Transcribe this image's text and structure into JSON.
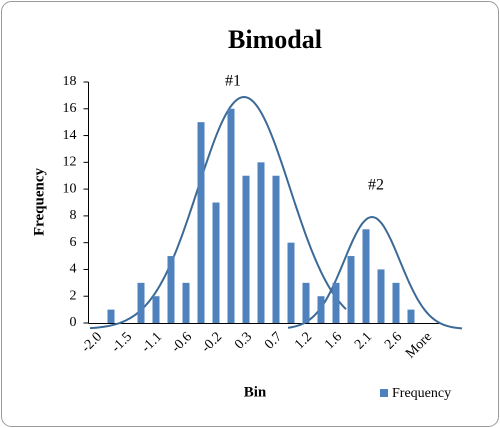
{
  "chart_data": {
    "type": "bar",
    "title": "Bimodal",
    "x_label": "Bin",
    "y_label": "Frequency",
    "categories": [
      "-2.0",
      null,
      "-1.5",
      null,
      "-1.1",
      null,
      "-0.6",
      null,
      "-0.2",
      null,
      "0.3",
      null,
      "0.7",
      null,
      "1.2",
      null,
      "1.6",
      null,
      "2.1",
      null,
      "2.6",
      null,
      "More"
    ],
    "series": [
      {
        "name": "Frequency",
        "color": "#4f81bd",
        "values": [
          0,
          1,
          0,
          3,
          2,
          5,
          3,
          15,
          9,
          16,
          11,
          12,
          11,
          6,
          3,
          2,
          3,
          5,
          7,
          4,
          3,
          1,
          0
        ]
      }
    ],
    "ylim": [
      0,
      18
    ],
    "yticks": [
      0,
      2,
      4,
      6,
      8,
      10,
      12,
      14,
      16,
      18
    ],
    "grid": false,
    "legend": "bottom-right",
    "annotations": [
      "#1",
      "#2"
    ]
  }
}
